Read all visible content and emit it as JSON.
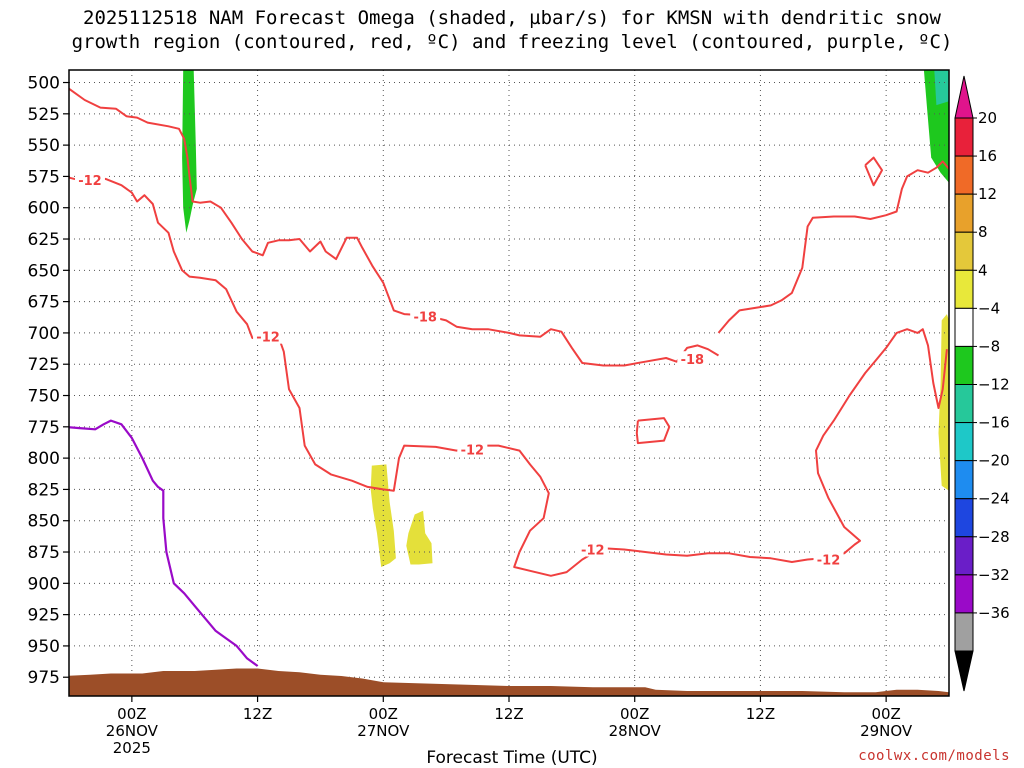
{
  "title_line1": "2025112518 NAM Forecast Omega (shaded, µbar/s) for KMSN with dendritic snow",
  "title_line2": "growth region (contoured, red, ºC) and freezing level (contoured, purple, ºC)",
  "credit": "coolwx.com/models",
  "chart_data": {
    "type": "contour",
    "xlabel": "Forecast Time (UTC)",
    "x_units": "forecast hour from 2025-11-25 18Z",
    "xlim": [
      0,
      84
    ],
    "x_ticks": [
      {
        "hour": 6,
        "lines": [
          "00Z",
          "26NOV",
          "2025"
        ]
      },
      {
        "hour": 18,
        "lines": [
          "12Z"
        ]
      },
      {
        "hour": 30,
        "lines": [
          "00Z",
          "27NOV"
        ]
      },
      {
        "hour": 42,
        "lines": [
          "12Z"
        ]
      },
      {
        "hour": 54,
        "lines": [
          "00Z",
          "28NOV"
        ]
      },
      {
        "hour": 66,
        "lines": [
          "12Z"
        ]
      },
      {
        "hour": 78,
        "lines": [
          "00Z",
          "29NOV"
        ]
      }
    ],
    "y_units": "hPa",
    "ylim": [
      990,
      490
    ],
    "y_ticks": [
      500,
      525,
      550,
      575,
      600,
      625,
      650,
      675,
      700,
      725,
      750,
      775,
      800,
      825,
      850,
      875,
      900,
      925,
      950,
      975
    ],
    "grid": true,
    "colorbar": {
      "units": "µbar/s",
      "levels": [
        20,
        16,
        12,
        8,
        4,
        -4,
        -8,
        -12,
        -16,
        -20,
        -24,
        -28,
        -32,
        -36
      ],
      "colors": [
        "#e8213a",
        "#f06a27",
        "#e8a12b",
        "#e4c83a",
        "#e8e83a",
        "#ffffff",
        "#1ec81e",
        "#26c89a",
        "#1ec8c8",
        "#1e8cf0",
        "#1e46e0",
        "#6a1ec8",
        "#9a0ac8",
        "#a0a0a0"
      ],
      "top_color": "#e0148c",
      "bottom_color": "#000000"
    },
    "dgz_contours": {
      "color": "#f04040",
      "labels": [
        {
          "text": "-12",
          "x": 2.0,
          "y": 578
        },
        {
          "text": "-12",
          "x": 19.0,
          "y": 703
        },
        {
          "text": "-18",
          "x": 34.0,
          "y": 687
        },
        {
          "text": "-18",
          "x": 59.5,
          "y": 721
        },
        {
          "text": "-12",
          "x": 38.5,
          "y": 793
        },
        {
          "text": "-12",
          "x": 50.0,
          "y": 873
        },
        {
          "text": "-12",
          "x": 72.5,
          "y": 881
        }
      ],
      "lines": [
        [
          [
            -0.5,
            502
          ],
          [
            1.5,
            514
          ],
          [
            3,
            520
          ],
          [
            4.5,
            521
          ],
          [
            5.5,
            527
          ],
          [
            6.5,
            528
          ],
          [
            7.5,
            532
          ],
          [
            9.5,
            535
          ],
          [
            10.5,
            537
          ],
          [
            11,
            545
          ],
          [
            11.3,
            560
          ],
          [
            11.5,
            575
          ],
          [
            11.8,
            595
          ],
          [
            12.5,
            596
          ],
          [
            13.5,
            595
          ],
          [
            14.5,
            600
          ],
          [
            15.5,
            612
          ],
          [
            16.5,
            625
          ],
          [
            17.5,
            635
          ],
          [
            18.5,
            638
          ],
          [
            19,
            628
          ],
          [
            20,
            626
          ],
          [
            21,
            626
          ],
          [
            22,
            625
          ],
          [
            23,
            635
          ],
          [
            24,
            627
          ],
          [
            24.5,
            635
          ],
          [
            25.5,
            641
          ],
          [
            26.5,
            624
          ],
          [
            27.5,
            624
          ],
          [
            28,
            632
          ],
          [
            29,
            647
          ],
          [
            30,
            660
          ],
          [
            31,
            682
          ],
          [
            32,
            685
          ],
          [
            34,
            686
          ],
          [
            36,
            690
          ],
          [
            37,
            695
          ],
          [
            38.5,
            697
          ],
          [
            40,
            697
          ],
          [
            42,
            700
          ],
          [
            43,
            702
          ],
          [
            45,
            703
          ],
          [
            46,
            697
          ],
          [
            47,
            699
          ],
          [
            48,
            712
          ],
          [
            49,
            724
          ],
          [
            51,
            726
          ],
          [
            53,
            726
          ],
          [
            55,
            723
          ],
          [
            57,
            720
          ],
          [
            58,
            723
          ],
          [
            59,
            712
          ],
          [
            60,
            710
          ],
          [
            61,
            713
          ],
          [
            62,
            718
          ]
        ],
        [
          [
            -0.5,
            575
          ],
          [
            1,
            578
          ],
          [
            2,
            580
          ],
          [
            3.5,
            577
          ],
          [
            5,
            582
          ],
          [
            6,
            588
          ],
          [
            6.5,
            595
          ],
          [
            7.2,
            590
          ],
          [
            8,
            597
          ],
          [
            8.5,
            612
          ],
          [
            9.5,
            620
          ],
          [
            10,
            635
          ],
          [
            10.8,
            650
          ],
          [
            11.5,
            655
          ],
          [
            12.5,
            656
          ],
          [
            14,
            658
          ],
          [
            15,
            665
          ],
          [
            16,
            683
          ],
          [
            17,
            693
          ],
          [
            17.5,
            704
          ],
          [
            18.5,
            706
          ]
        ],
        [
          [
            20,
            703
          ],
          [
            20.5,
            715
          ],
          [
            21,
            745
          ],
          [
            22,
            760
          ],
          [
            22.5,
            790
          ],
          [
            23.5,
            805
          ],
          [
            25,
            813
          ],
          [
            27,
            818
          ],
          [
            28.5,
            823
          ],
          [
            30,
            825
          ],
          [
            31,
            826
          ],
          [
            31.5,
            800
          ],
          [
            32,
            790
          ],
          [
            35,
            791
          ],
          [
            37,
            794
          ],
          [
            39,
            790
          ],
          [
            41,
            790
          ],
          [
            43,
            794
          ],
          [
            44,
            805
          ],
          [
            45,
            815
          ],
          [
            45.8,
            828
          ],
          [
            45.3,
            848
          ],
          [
            44,
            858
          ],
          [
            43,
            875
          ],
          [
            42.5,
            887
          ],
          [
            44,
            890
          ],
          [
            46,
            894
          ],
          [
            47.5,
            891
          ],
          [
            49,
            881
          ],
          [
            50,
            876
          ],
          [
            51,
            872
          ],
          [
            53,
            873
          ],
          [
            55,
            875
          ],
          [
            57,
            877
          ],
          [
            59,
            878
          ],
          [
            61,
            876
          ],
          [
            63,
            876
          ],
          [
            65,
            879
          ],
          [
            67,
            880
          ],
          [
            69,
            883
          ],
          [
            70.5,
            881
          ],
          [
            72,
            880
          ],
          [
            74,
            876
          ],
          [
            75,
            869
          ],
          [
            75.5,
            866
          ],
          [
            74,
            855
          ],
          [
            72.5,
            832
          ],
          [
            71.5,
            812
          ],
          [
            71.3,
            794
          ],
          [
            72,
            782
          ],
          [
            73,
            770
          ],
          [
            74.5,
            750
          ],
          [
            76,
            732
          ],
          [
            77,
            722
          ],
          [
            78,
            712
          ],
          [
            79,
            700
          ],
          [
            80,
            697
          ],
          [
            81,
            700
          ],
          [
            81.5,
            697
          ],
          [
            82,
            710
          ],
          [
            82.5,
            740
          ],
          [
            83,
            760
          ],
          [
            83.4,
            745
          ],
          [
            83.8,
            713
          ]
        ],
        [
          [
            62,
            700
          ],
          [
            63,
            690
          ],
          [
            64,
            682
          ],
          [
            65.5,
            680
          ],
          [
            67,
            678
          ],
          [
            68,
            674
          ],
          [
            69,
            668
          ],
          [
            70,
            648
          ],
          [
            70.5,
            615
          ],
          [
            71,
            608
          ],
          [
            73,
            607
          ],
          [
            75,
            607
          ],
          [
            76.5,
            609
          ],
          [
            78,
            606
          ],
          [
            79,
            603
          ],
          [
            79.5,
            585
          ],
          [
            80,
            575
          ],
          [
            81,
            570
          ],
          [
            82,
            572
          ],
          [
            82.8,
            568
          ],
          [
            83.4,
            563
          ],
          [
            84,
            569
          ]
        ],
        [
          [
            54.3,
            770
          ],
          [
            56.8,
            768
          ],
          [
            57.3,
            775
          ],
          [
            56.8,
            786
          ],
          [
            54.3,
            788
          ],
          [
            54.2,
            780
          ],
          [
            54.3,
            770
          ]
        ],
        [
          [
            76,
            566
          ],
          [
            76.8,
            560
          ],
          [
            77.6,
            570
          ],
          [
            76.8,
            582
          ],
          [
            76,
            566
          ]
        ]
      ]
    },
    "freezing_level": {
      "color": "#9a0ac8",
      "points": [
        [
          -0.5,
          775
        ],
        [
          1,
          776
        ],
        [
          2.5,
          777
        ],
        [
          3.3,
          773
        ],
        [
          4,
          770
        ],
        [
          5,
          773
        ],
        [
          6,
          784
        ],
        [
          7,
          800
        ],
        [
          8,
          818
        ],
        [
          8.5,
          823
        ],
        [
          9,
          826
        ],
        [
          9,
          848
        ],
        [
          9.3,
          875
        ],
        [
          10,
          900
        ],
        [
          11,
          908
        ],
        [
          12,
          918
        ],
        [
          13,
          928
        ],
        [
          14,
          938
        ],
        [
          15,
          944
        ],
        [
          16,
          950
        ],
        [
          16.5,
          955
        ],
        [
          17,
          960
        ],
        [
          18,
          966
        ]
      ]
    },
    "omega_shading": [
      {
        "color": "#1ec81e",
        "points": [
          [
            10.9,
            490
          ],
          [
            11.9,
            490
          ],
          [
            12.1,
            550
          ],
          [
            12.2,
            585
          ],
          [
            11.8,
            598
          ],
          [
            11.5,
            610
          ],
          [
            11.2,
            620
          ],
          [
            10.9,
            600
          ],
          [
            10.8,
            560
          ]
        ]
      },
      {
        "color": "#1ec81e",
        "points": [
          [
            81.6,
            490
          ],
          [
            84,
            490
          ],
          [
            84,
            580
          ],
          [
            83.2,
            572
          ],
          [
            82.3,
            560
          ],
          [
            81.9,
            520
          ]
        ]
      },
      {
        "color": "#26c89a",
        "points": [
          [
            82.6,
            490
          ],
          [
            84,
            490
          ],
          [
            84,
            515
          ],
          [
            82.8,
            518
          ]
        ]
      },
      {
        "color": "#e4e03a",
        "points": [
          [
            28.9,
            806
          ],
          [
            30.3,
            805
          ],
          [
            30.6,
            835
          ],
          [
            31.0,
            858
          ],
          [
            31.2,
            880
          ],
          [
            30.6,
            884
          ],
          [
            29.8,
            887
          ],
          [
            29.4,
            860
          ],
          [
            29.0,
            840
          ],
          [
            28.8,
            825
          ]
        ]
      },
      {
        "color": "#e4e03a",
        "points": [
          [
            32.4,
            860
          ],
          [
            33.0,
            845
          ],
          [
            33.8,
            842
          ],
          [
            34.0,
            860
          ],
          [
            34.6,
            868
          ],
          [
            34.7,
            884
          ],
          [
            33.4,
            885
          ],
          [
            32.6,
            885
          ],
          [
            32.2,
            870
          ]
        ]
      },
      {
        "color": "#e4e03a",
        "points": [
          [
            83.3,
            690
          ],
          [
            83.8,
            685
          ],
          [
            84,
            690
          ],
          [
            84,
            826
          ],
          [
            83.3,
            822
          ],
          [
            83.0,
            780
          ],
          [
            83.2,
            740
          ]
        ]
      }
    ],
    "terrain": {
      "color": "#9c4e28",
      "points": [
        [
          -0.5,
          974
        ],
        [
          2,
          973
        ],
        [
          4,
          972
        ],
        [
          7,
          972
        ],
        [
          9,
          970
        ],
        [
          12,
          970
        ],
        [
          14,
          969
        ],
        [
          16,
          968
        ],
        [
          18,
          968
        ],
        [
          20,
          970
        ],
        [
          22,
          971
        ],
        [
          24,
          973
        ],
        [
          26,
          974
        ],
        [
          28,
          976
        ],
        [
          30,
          979
        ],
        [
          34,
          980
        ],
        [
          38,
          981
        ],
        [
          42,
          982
        ],
        [
          46,
          982
        ],
        [
          50,
          983
        ],
        [
          53,
          983
        ],
        [
          55,
          983
        ],
        [
          56,
          985
        ],
        [
          59,
          986
        ],
        [
          62,
          986
        ],
        [
          66,
          986
        ],
        [
          70,
          986
        ],
        [
          74,
          987
        ],
        [
          77,
          987
        ],
        [
          79,
          985
        ],
        [
          81,
          985
        ],
        [
          83,
          986
        ],
        [
          84,
          987
        ]
      ]
    }
  }
}
